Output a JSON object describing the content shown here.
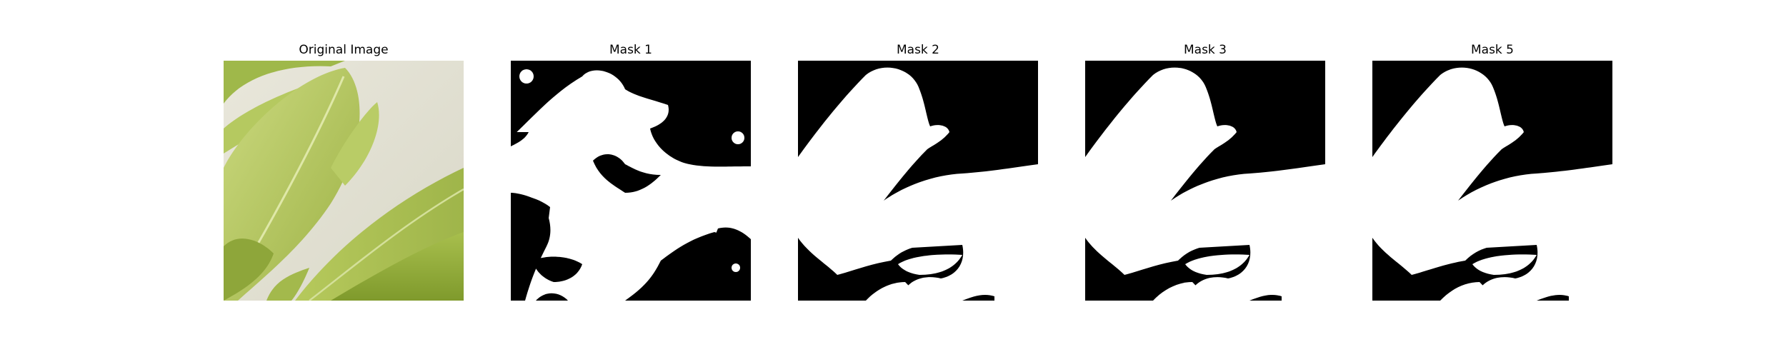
{
  "figure": {
    "panels": [
      {
        "title": "Original Image",
        "kind": "photo",
        "subject": "leaf-photo"
      },
      {
        "title": "Mask 1",
        "kind": "mask"
      },
      {
        "title": "Mask 2",
        "kind": "mask"
      },
      {
        "title": "Mask 3",
        "kind": "mask"
      },
      {
        "title": "Mask 5",
        "kind": "mask"
      }
    ],
    "colors": {
      "background": "#ffffff",
      "mask_fg": "#ffffff",
      "mask_bg": "#000000",
      "leaf_light": "#c8d67a",
      "leaf_mid": "#a9bf4e",
      "leaf_dark": "#7f9a2c",
      "wall": "#e4e2d5"
    }
  }
}
